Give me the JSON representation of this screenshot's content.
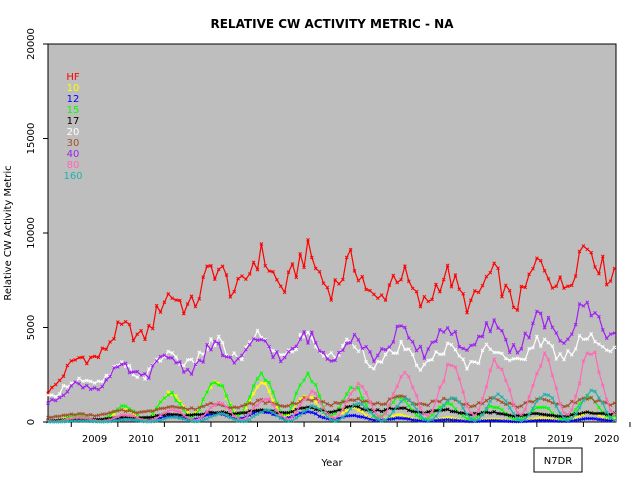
{
  "chart_data": {
    "type": "line",
    "title": "RELATIVE CW ACTIVITY METRIC - NA",
    "xlabel": "Year",
    "ylabel": "Relative CW Activity Metric",
    "xlim": [
      2008.5,
      2020.7
    ],
    "ylim": [
      0,
      20000
    ],
    "yticks": [
      0,
      5000,
      10000,
      15000,
      20000
    ],
    "year_labels": [
      "2009",
      "2010",
      "2011",
      "2012",
      "2013",
      "2014",
      "2015",
      "2016",
      "2017",
      "2018",
      "2019",
      "2020"
    ],
    "background": "#bebebe",
    "credit": "N7DR",
    "series": [
      {
        "name": "HF",
        "color": "#ff0000",
        "base": [
          1800,
          3800,
          5000,
          6800,
          7800,
          8000,
          8000,
          7200,
          7000,
          7000,
          7000,
          8000,
          8800
        ],
        "amp": 0.11,
        "phase": 0.0
      },
      {
        "name": "10",
        "color": "#ffff00",
        "base": [
          150,
          200,
          500,
          1200,
          1300,
          1100,
          600,
          300,
          150,
          100,
          80,
          150,
          400
        ],
        "amp": 0.7,
        "phase": 0.5
      },
      {
        "name": "12",
        "color": "#0000ff",
        "base": [
          40,
          60,
          120,
          250,
          350,
          400,
          300,
          180,
          100,
          60,
          40,
          60,
          150
        ],
        "amp": 0.5,
        "phase": 0.5
      },
      {
        "name": "15",
        "color": "#00ff00",
        "base": [
          100,
          250,
          600,
          1000,
          1400,
          1500,
          1300,
          900,
          600,
          500,
          450,
          500,
          900
        ],
        "amp": 0.75,
        "phase": 0.4
      },
      {
        "name": "17",
        "color": "#000000",
        "base": [
          80,
          150,
          250,
          400,
          500,
          600,
          650,
          700,
          600,
          500,
          400,
          350,
          500
        ],
        "amp": 0.15,
        "phase": 0.0
      },
      {
        "name": "20",
        "color": "#ffffff",
        "base": [
          1500,
          2300,
          2800,
          3500,
          3900,
          4000,
          4000,
          3500,
          3400,
          3500,
          3600,
          4000,
          4200
        ],
        "amp": 0.14,
        "phase": 0.0
      },
      {
        "name": "30",
        "color": "#a0522d",
        "base": [
          300,
          400,
          600,
          800,
          900,
          1000,
          1100,
          1100,
          1100,
          1050,
          1000,
          1050,
          1100
        ],
        "amp": 0.15,
        "phase": 0.2
      },
      {
        "name": "40",
        "color": "#a020f0",
        "base": [
          1200,
          2100,
          2800,
          3200,
          3700,
          3900,
          4000,
          4000,
          4300,
          4400,
          4500,
          5000,
          5600
        ],
        "amp": 0.15,
        "phase": 0.0
      },
      {
        "name": "80",
        "color": "#ff69b4",
        "base": [
          100,
          150,
          250,
          400,
          600,
          700,
          900,
          1200,
          1500,
          1700,
          1800,
          1900,
          2200
        ],
        "amp": 0.8,
        "phase": 1.2
      },
      {
        "name": "160",
        "color": "#20b2aa",
        "base": [
          20,
          40,
          80,
          150,
          250,
          350,
          450,
          550,
          650,
          700,
          750,
          800,
          900
        ],
        "amp": 0.9,
        "phase": 1.5
      }
    ]
  }
}
